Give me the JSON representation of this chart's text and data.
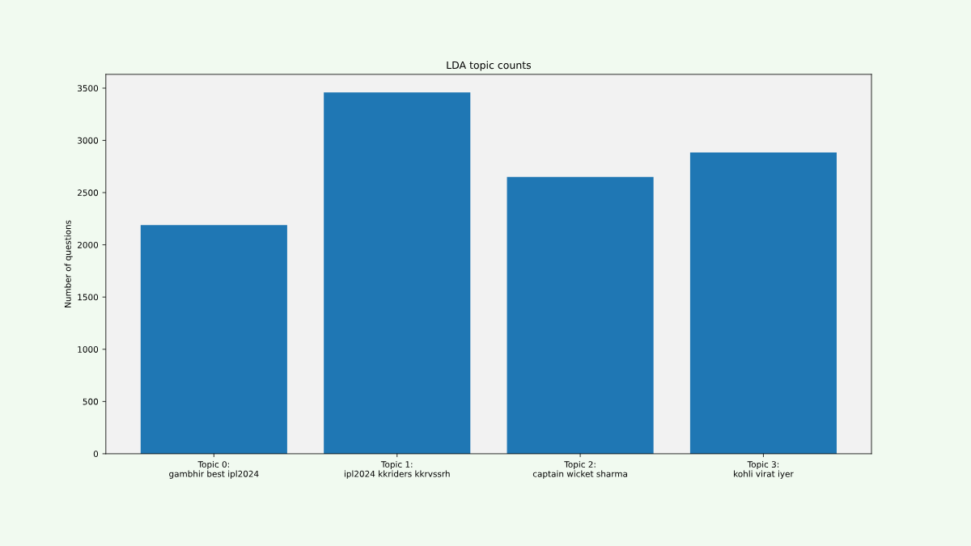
{
  "chart_data": {
    "type": "bar",
    "title": "LDA topic counts",
    "ylabel": "Number of questions",
    "categories": [
      "Topic 0:\ngambhir best ipl2024",
      "Topic 1:\nipl2024 kkriders kkrvssrh",
      "Topic 2:\ncaptain wicket sharma",
      "Topic 3:\nkohli virat iyer"
    ],
    "values": [
      2190,
      3460,
      2650,
      2885
    ],
    "color": "#1f77b4",
    "ylim": [
      0,
      3632
    ],
    "yticks": [
      0,
      500,
      1000,
      1500,
      2000,
      2500,
      3000,
      3500
    ],
    "grid": false,
    "legend": false
  }
}
